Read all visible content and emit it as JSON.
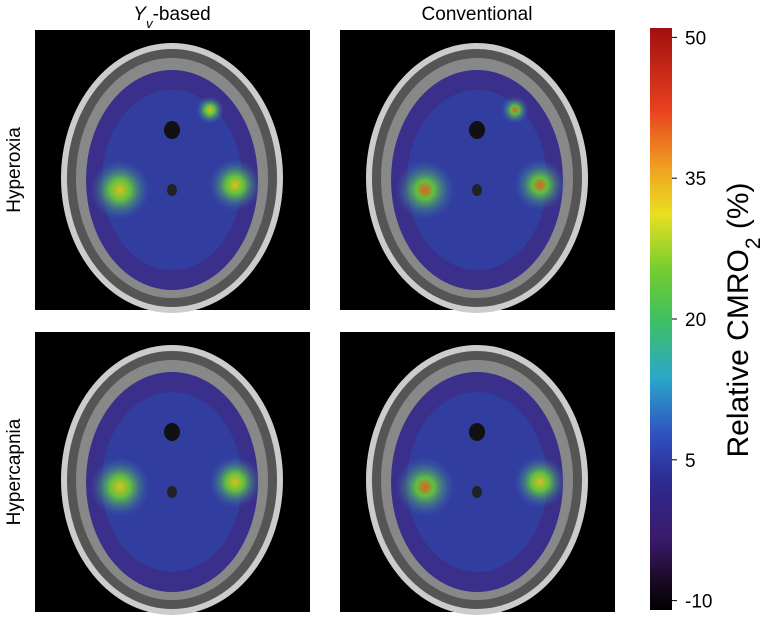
{
  "column_titles": [
    [
      {
        "text": "Y",
        "italic": true
      },
      {
        "text": "v",
        "italic": true,
        "sub": true
      },
      {
        "text": "-based"
      }
    ],
    [
      {
        "text": "Conventional"
      }
    ]
  ],
  "row_titles": [
    "Hyperoxia",
    "Hypercapnia"
  ],
  "colorbar": {
    "label": [
      {
        "text": "Relative CMRO"
      },
      {
        "text": "2",
        "sub": true
      },
      {
        "text": " (%)"
      }
    ],
    "lim": [
      -11,
      51
    ],
    "ticks": [
      -10,
      5,
      20,
      35,
      50
    ]
  }
}
